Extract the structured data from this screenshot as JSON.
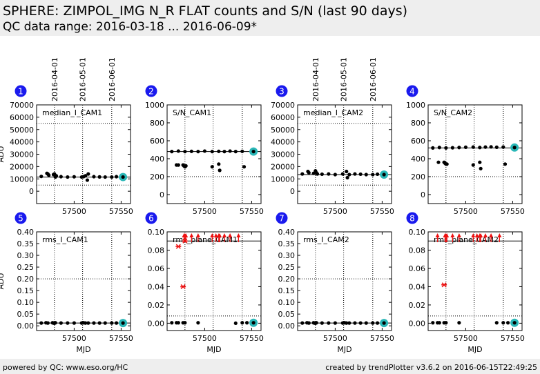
{
  "header": {
    "title": "SPHERE: ZIMPOL_IMG N_R FLAT counts and S/N (last 90 days)",
    "subtitle": "QC data range: 2016-03-18 ... 2016-06-09*"
  },
  "footer": {
    "left": "powered by QC: www.eso.org/HC",
    "right": "created by trendPlotter v3.6.2 on 2016-06-15T22:49:25"
  },
  "colors": {
    "point": "#000000",
    "latest_ring": "#2ab7b7",
    "outlier": "#ee1111",
    "badge": "#1a1aee",
    "badge_text": "#ffffff",
    "grid": "#000000"
  },
  "chart_data": [
    {
      "id": 1,
      "type": "scatter",
      "label": "median_I_CAM1",
      "ylabel": "ADU",
      "xlabel": "",
      "xlim": [
        57460,
        57560
      ],
      "ylim": [
        -10000,
        70000
      ],
      "yticks": [
        "0",
        "10000",
        "20000",
        "30000",
        "40000",
        "50000",
        "60000",
        "70000"
      ],
      "ytick_values": [
        0,
        10000,
        20000,
        30000,
        40000,
        50000,
        60000,
        70000
      ],
      "xticks": [
        "57500",
        "57550"
      ],
      "xtick_values": [
        57500,
        57550
      ],
      "date_ticks": [
        "2016-04-01",
        "2016-05-01",
        "2016-06-01"
      ],
      "date_values": [
        57479,
        57509,
        57540
      ],
      "ref_line": 11500,
      "limits": [
        5000,
        55000
      ],
      "points": [
        [
          57465,
          12000
        ],
        [
          57471,
          14500
        ],
        [
          57472,
          14000
        ],
        [
          57473,
          13000
        ],
        [
          57478,
          13500
        ],
        [
          57479,
          14000
        ],
        [
          57480,
          11500
        ],
        [
          57481,
          12500
        ],
        [
          57486,
          11800
        ],
        [
          57493,
          11500
        ],
        [
          57500,
          11700
        ],
        [
          57508,
          11500
        ],
        [
          57510,
          11800
        ],
        [
          57512,
          12500
        ],
        [
          57514,
          9000
        ],
        [
          57515,
          14000
        ],
        [
          57521,
          11800
        ],
        [
          57527,
          11600
        ],
        [
          57533,
          11500
        ],
        [
          57540,
          11500
        ],
        [
          57545,
          11800
        ]
      ],
      "latest": [
        57552,
        11500
      ],
      "outliers": []
    },
    {
      "id": 2,
      "type": "scatter",
      "label": "S/N_CAM1",
      "ylabel": "",
      "xlabel": "",
      "xlim": [
        57460,
        57560
      ],
      "ylim": [
        -100,
        1000
      ],
      "yticks": [
        "0",
        "200",
        "400",
        "600",
        "800",
        "1000"
      ],
      "ytick_values": [
        0,
        200,
        400,
        600,
        800,
        1000
      ],
      "xticks": [
        "57500",
        "57550"
      ],
      "xtick_values": [
        57500,
        57550
      ],
      "date_ticks": [],
      "date_values": [
        57479,
        57509,
        57540
      ],
      "ref_line": 480,
      "limits": [
        200
      ],
      "points": [
        [
          57465,
          480
        ],
        [
          57472,
          485
        ],
        [
          57479,
          480
        ],
        [
          57486,
          482
        ],
        [
          57493,
          480
        ],
        [
          57500,
          485
        ],
        [
          57508,
          480
        ],
        [
          57515,
          482
        ],
        [
          57521,
          480
        ],
        [
          57527,
          485
        ],
        [
          57533,
          480
        ],
        [
          57540,
          482
        ],
        [
          57470,
          330
        ],
        [
          57472,
          330
        ],
        [
          57477,
          330
        ],
        [
          57478,
          320
        ],
        [
          57479,
          310
        ],
        [
          57480,
          320
        ],
        [
          57508,
          310
        ],
        [
          57515,
          340
        ],
        [
          57516,
          270
        ],
        [
          57542,
          310
        ]
      ],
      "latest": [
        57552,
        480
      ],
      "outliers": []
    },
    {
      "id": 3,
      "type": "scatter",
      "label": "median_I_CAM2",
      "ylabel": "",
      "xlabel": "",
      "xlim": [
        57460,
        57560
      ],
      "ylim": [
        -10000,
        70000
      ],
      "yticks": [
        "0",
        "10000",
        "20000",
        "30000",
        "40000",
        "50000",
        "60000",
        "70000"
      ],
      "ytick_values": [
        0,
        10000,
        20000,
        30000,
        40000,
        50000,
        60000,
        70000
      ],
      "xticks": [
        "57500",
        "57550"
      ],
      "xtick_values": [
        57500,
        57550
      ],
      "date_ticks": [
        "2016-04-01",
        "2016-05-01",
        "2016-06-01"
      ],
      "date_values": [
        57479,
        57509,
        57540
      ],
      "ref_line": 13500,
      "limits": [
        5000,
        55000
      ],
      "points": [
        [
          57465,
          14000
        ],
        [
          57471,
          16000
        ],
        [
          57472,
          15000
        ],
        [
          57477,
          14500
        ],
        [
          57479,
          16500
        ],
        [
          57480,
          15000
        ],
        [
          57481,
          14000
        ],
        [
          57486,
          13800
        ],
        [
          57493,
          14000
        ],
        [
          57500,
          13500
        ],
        [
          57508,
          14000
        ],
        [
          57512,
          16000
        ],
        [
          57513,
          11000
        ],
        [
          57515,
          13500
        ],
        [
          57521,
          14000
        ],
        [
          57527,
          13800
        ],
        [
          57533,
          13500
        ],
        [
          57540,
          13500
        ],
        [
          57545,
          13800
        ]
      ],
      "latest": [
        57552,
        13500
      ],
      "outliers": []
    },
    {
      "id": 4,
      "type": "scatter",
      "label": "S/N_CAM2",
      "ylabel": "",
      "xlabel": "",
      "xlim": [
        57460,
        57560
      ],
      "ylim": [
        -100,
        1000
      ],
      "yticks": [
        "0",
        "200",
        "400",
        "600",
        "800",
        "1000"
      ],
      "ytick_values": [
        0,
        200,
        400,
        600,
        800,
        1000
      ],
      "xticks": [
        "57500",
        "57550"
      ],
      "xtick_values": [
        57500,
        57550
      ],
      "date_ticks": [],
      "date_values": [
        57479,
        57509,
        57540
      ],
      "ref_line": 520,
      "limits": [
        200
      ],
      "points": [
        [
          57465,
          520
        ],
        [
          57472,
          525
        ],
        [
          57479,
          520
        ],
        [
          57486,
          522
        ],
        [
          57493,
          525
        ],
        [
          57500,
          528
        ],
        [
          57508,
          530
        ],
        [
          57515,
          525
        ],
        [
          57521,
          530
        ],
        [
          57527,
          532
        ],
        [
          57533,
          528
        ],
        [
          57540,
          530
        ],
        [
          57471,
          360
        ],
        [
          57477,
          360
        ],
        [
          57478,
          350
        ],
        [
          57479,
          340
        ],
        [
          57480,
          340
        ],
        [
          57508,
          330
        ],
        [
          57515,
          360
        ],
        [
          57516,
          290
        ],
        [
          57542,
          340
        ]
      ],
      "latest": [
        57552,
        525
      ],
      "outliers": []
    },
    {
      "id": 5,
      "type": "scatter",
      "label": "rms_I_CAM1",
      "ylabel": "ADU",
      "xlabel": "MJD",
      "xlim": [
        57460,
        57560
      ],
      "ylim": [
        -0.02,
        0.4
      ],
      "yticks": [
        "0.00",
        "0.05",
        "0.10",
        "0.15",
        "0.20",
        "0.25",
        "0.30",
        "0.35",
        "0.40"
      ],
      "ytick_values": [
        0,
        0.05,
        0.1,
        0.15,
        0.2,
        0.25,
        0.3,
        0.35,
        0.4
      ],
      "xticks": [
        "57500",
        "57550"
      ],
      "xtick_values": [
        57500,
        57550
      ],
      "date_ticks": [],
      "date_values": [
        57479,
        57509,
        57540
      ],
      "ref_line": 0.012,
      "limits": [
        0.2
      ],
      "points": [
        [
          57465,
          0.012
        ],
        [
          57470,
          0.013
        ],
        [
          57472,
          0.012
        ],
        [
          57477,
          0.013
        ],
        [
          57478,
          0.012
        ],
        [
          57479,
          0.011
        ],
        [
          57480,
          0.013
        ],
        [
          57486,
          0.012
        ],
        [
          57493,
          0.012
        ],
        [
          57500,
          0.012
        ],
        [
          57508,
          0.012
        ],
        [
          57510,
          0.013
        ],
        [
          57512,
          0.012
        ],
        [
          57515,
          0.012
        ],
        [
          57521,
          0.012
        ],
        [
          57527,
          0.012
        ],
        [
          57533,
          0.012
        ],
        [
          57540,
          0.012
        ],
        [
          57545,
          0.012
        ]
      ],
      "latest": [
        57552,
        0.012
      ],
      "outliers": []
    },
    {
      "id": 6,
      "type": "scatter",
      "label": "rms_plane_CAM1",
      "ylabel": "",
      "xlabel": "MJD",
      "xlim": [
        57460,
        57560
      ],
      "ylim": [
        -0.008,
        0.1
      ],
      "yticks": [
        "0.00",
        "0.02",
        "0.04",
        "0.06",
        "0.08",
        "0.10"
      ],
      "ytick_values": [
        0,
        0.02,
        0.04,
        0.06,
        0.08,
        0.1
      ],
      "xticks": [
        "57500",
        "57550"
      ],
      "xtick_values": [
        57500,
        57550
      ],
      "date_ticks": [],
      "date_values": [
        57479,
        57509,
        57540
      ],
      "ref_line": 0.09,
      "limits": [
        0.008
      ],
      "points": [
        [
          57465,
          0.0005
        ],
        [
          57470,
          0.0005
        ],
        [
          57472,
          0.0005
        ],
        [
          57477,
          0.0005
        ],
        [
          57479,
          0.0005
        ],
        [
          57493,
          0.0005
        ],
        [
          57533,
          0.0
        ],
        [
          57540,
          0.0005
        ],
        [
          57545,
          0.0005
        ]
      ],
      "latest": [
        57552,
        0.0005
      ],
      "outliers": [
        [
          57472,
          0.084
        ],
        [
          57477,
          0.04
        ],
        [
          57479,
          0.09
        ]
      ],
      "arrows": [
        57478,
        57479,
        57480,
        57486,
        57493,
        57508,
        57512,
        57515,
        57516,
        57521,
        57527,
        57536
      ]
    },
    {
      "id": 7,
      "type": "scatter",
      "label": "rms_I_CAM2",
      "ylabel": "",
      "xlabel": "MJD",
      "xlim": [
        57460,
        57560
      ],
      "ylim": [
        -0.02,
        0.4
      ],
      "yticks": [
        "0.00",
        "0.05",
        "0.10",
        "0.15",
        "0.20",
        "0.25",
        "0.30",
        "0.35",
        "0.40"
      ],
      "ytick_values": [
        0,
        0.05,
        0.1,
        0.15,
        0.2,
        0.25,
        0.3,
        0.35,
        0.4
      ],
      "xticks": [
        "57500",
        "57550"
      ],
      "xtick_values": [
        57500,
        57550
      ],
      "date_ticks": [],
      "date_values": [
        57479,
        57509,
        57540
      ],
      "ref_line": 0.012,
      "limits": [
        0.2
      ],
      "points": [
        [
          57465,
          0.012
        ],
        [
          57470,
          0.013
        ],
        [
          57472,
          0.012
        ],
        [
          57477,
          0.013
        ],
        [
          57478,
          0.012
        ],
        [
          57479,
          0.011
        ],
        [
          57480,
          0.013
        ],
        [
          57486,
          0.012
        ],
        [
          57493,
          0.012
        ],
        [
          57500,
          0.012
        ],
        [
          57508,
          0.012
        ],
        [
          57510,
          0.013
        ],
        [
          57512,
          0.012
        ],
        [
          57515,
          0.012
        ],
        [
          57521,
          0.012
        ],
        [
          57527,
          0.012
        ],
        [
          57533,
          0.012
        ],
        [
          57540,
          0.012
        ],
        [
          57545,
          0.012
        ]
      ],
      "latest": [
        57552,
        0.012
      ],
      "outliers": []
    },
    {
      "id": 8,
      "type": "scatter",
      "label": "rms_plane_CAM2",
      "ylabel": "",
      "xlabel": "MJD",
      "xlim": [
        57460,
        57560
      ],
      "ylim": [
        -0.008,
        0.1
      ],
      "yticks": [
        "0.00",
        "0.02",
        "0.04",
        "0.06",
        "0.08",
        "0.10"
      ],
      "ytick_values": [
        0,
        0.02,
        0.04,
        0.06,
        0.08,
        0.1
      ],
      "xticks": [
        "57500",
        "57550"
      ],
      "xtick_values": [
        57500,
        57550
      ],
      "date_ticks": [],
      "date_values": [
        57479,
        57509,
        57540
      ],
      "ref_line": 0.09,
      "limits": [
        0.008
      ],
      "points": [
        [
          57465,
          0.0005
        ],
        [
          57470,
          0.0005
        ],
        [
          57472,
          0.0005
        ],
        [
          57477,
          0.0005
        ],
        [
          57479,
          0.0005
        ],
        [
          57493,
          0.0005
        ],
        [
          57533,
          0.0005
        ],
        [
          57540,
          0.0005
        ],
        [
          57545,
          0.0005
        ]
      ],
      "latest": [
        57552,
        0.0005
      ],
      "outliers": [
        [
          57477,
          0.042
        ]
      ],
      "arrows": [
        57470,
        57478,
        57479,
        57480,
        57486,
        57493,
        57508,
        57512,
        57515,
        57516,
        57521,
        57527,
        57536
      ]
    }
  ]
}
